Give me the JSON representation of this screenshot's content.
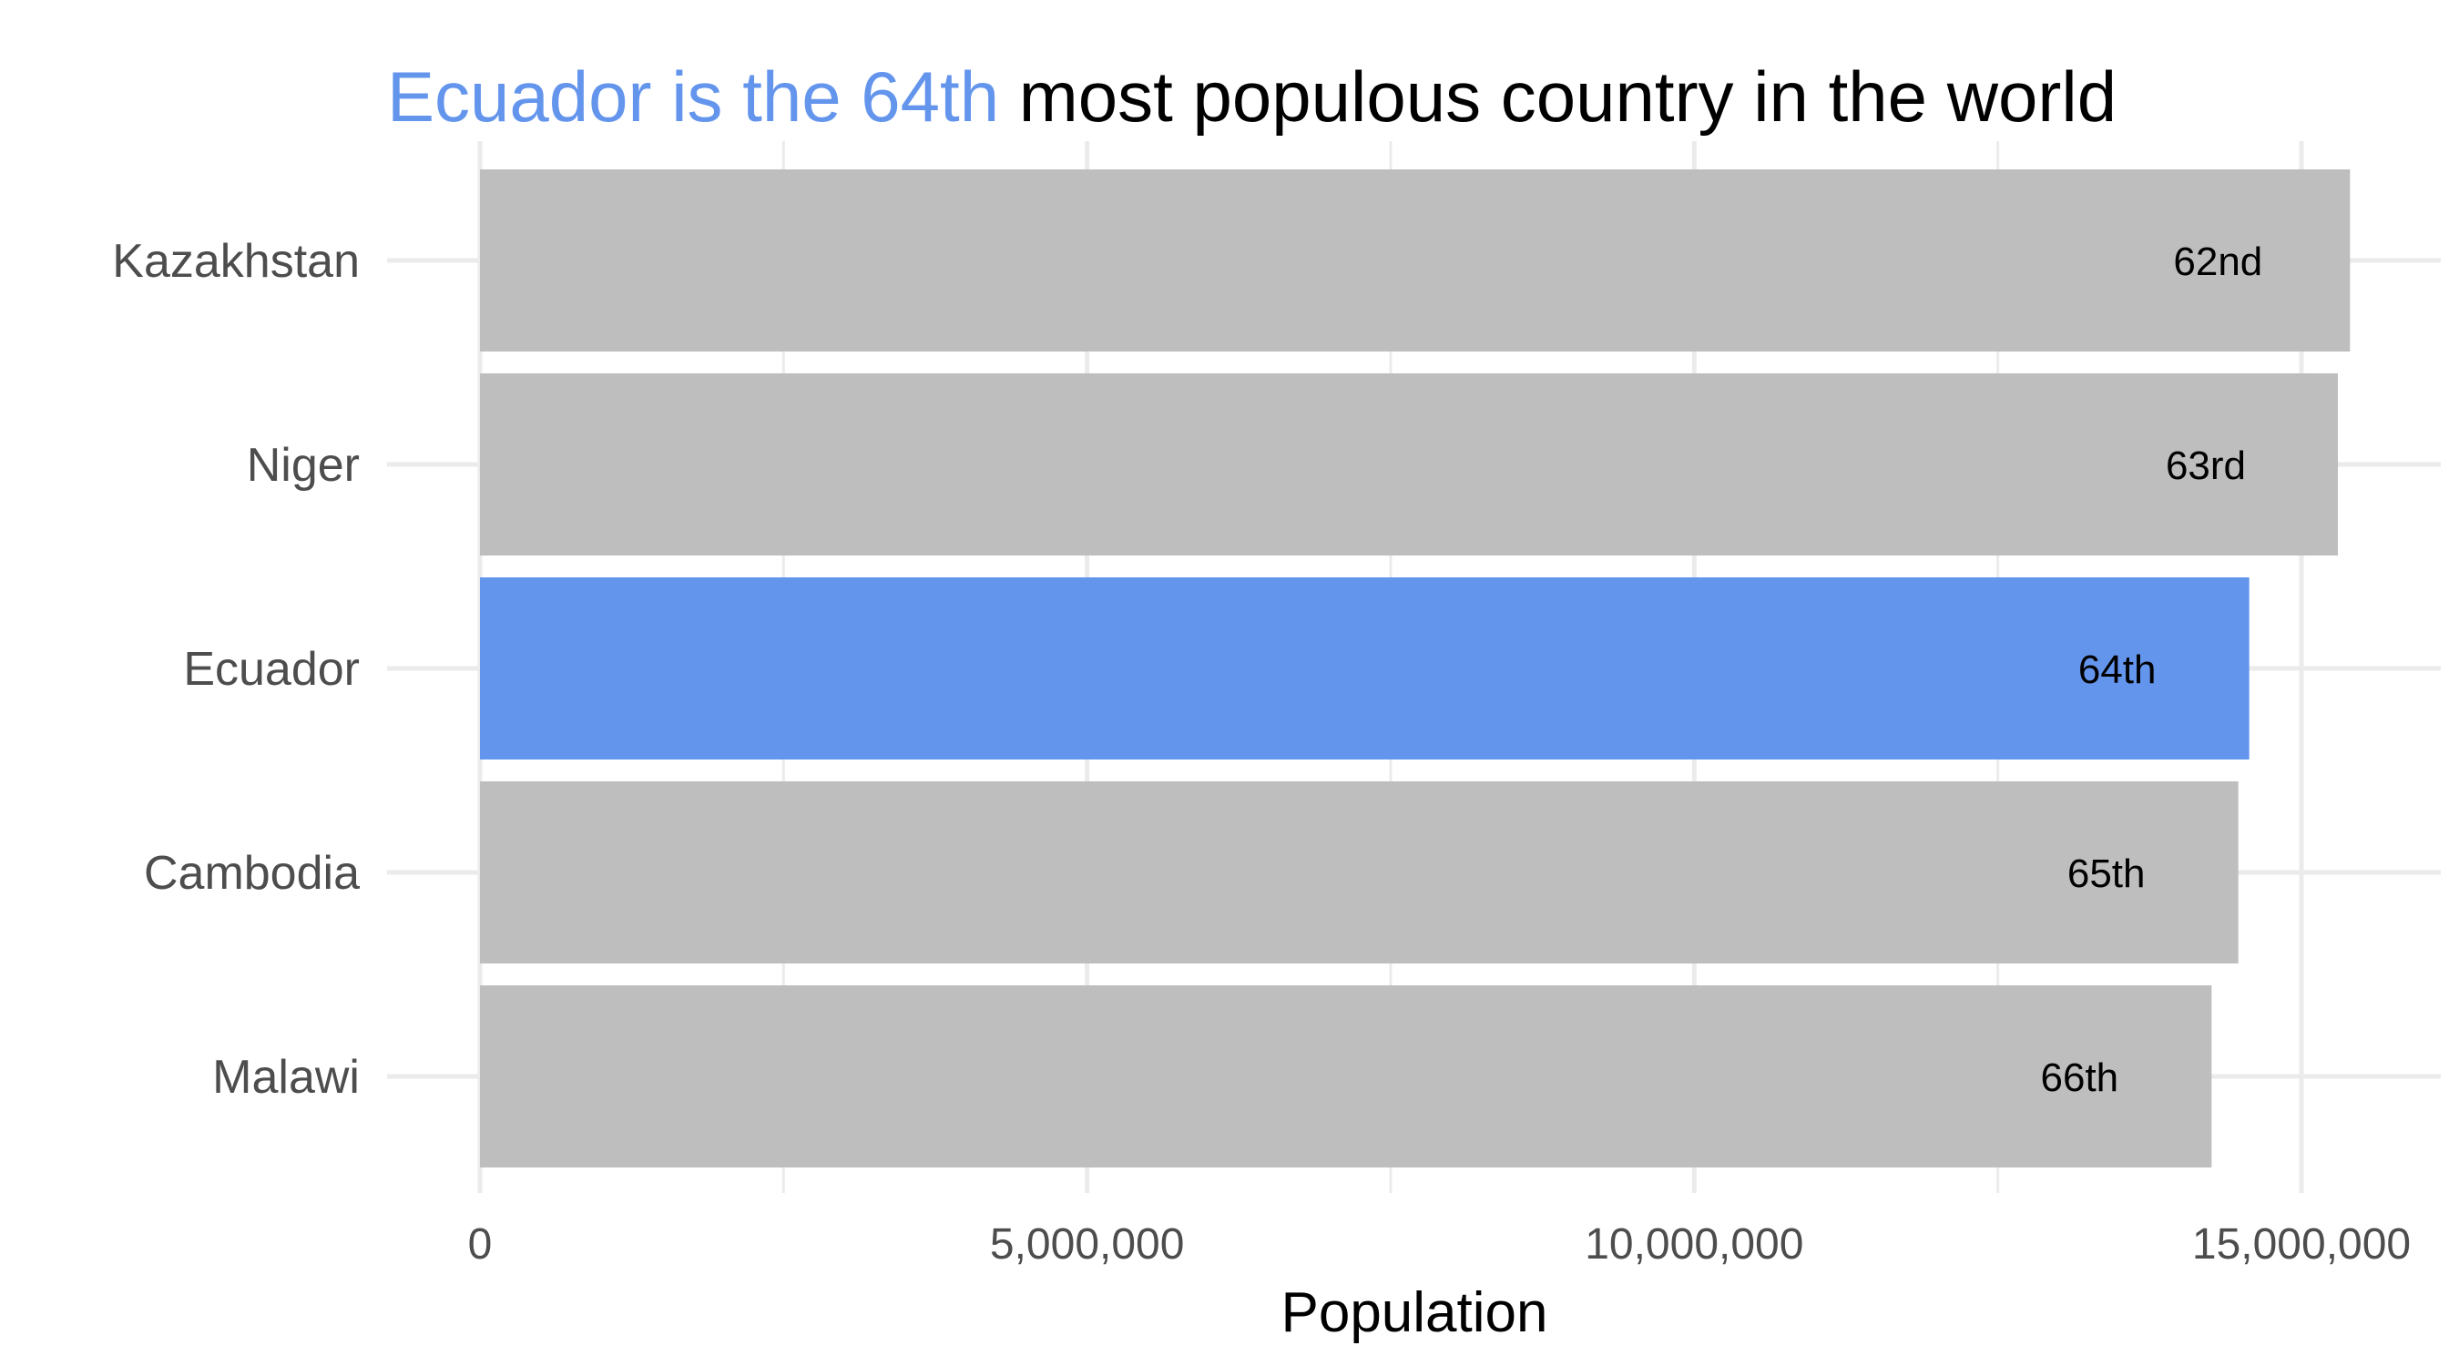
{
  "chart_data": {
    "type": "bar",
    "orientation": "horizontal",
    "title_parts": [
      {
        "text": "Ecuador is the 64th",
        "color": "#6495ED"
      },
      {
        "text": " most populous country in the world",
        "color": "#000000"
      }
    ],
    "xlabel": "Population",
    "ylabel": "",
    "categories": [
      "Kazakhstan",
      "Niger",
      "Ecuador",
      "Cambodia",
      "Malawi"
    ],
    "values": [
      15400000,
      15300000,
      14570000,
      14480000,
      14260000
    ],
    "rank_labels": [
      "62nd",
      "63rd",
      "64th",
      "65th",
      "66th"
    ],
    "highlight": "Ecuador",
    "xlim": [
      0,
      16000000
    ],
    "x_ticks": [
      0,
      5000000,
      10000000,
      15000000
    ],
    "x_tick_labels": [
      "0",
      "5,000,000",
      "10,000,000",
      "15,000,000"
    ],
    "grid": true,
    "colors": {
      "highlight": "#6495ED",
      "default": "#BEBEBE",
      "grid": "#EBEBEB"
    }
  }
}
